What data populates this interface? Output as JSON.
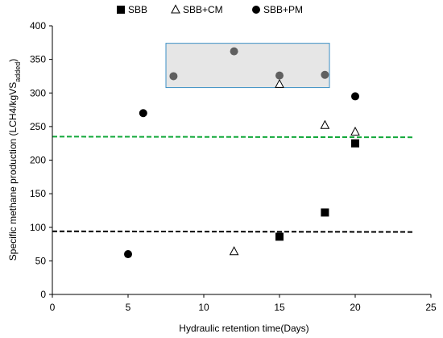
{
  "chart_data": {
    "type": "scatter",
    "xlabel": "Hydraulic retention time(Days)",
    "ylabel_main": "Specific methane production (LCH4/kgVS",
    "ylabel_sub": "added",
    "ylabel_close": ")",
    "xlim": [
      0,
      25
    ],
    "ylim": [
      0,
      400
    ],
    "x_ticks": [
      "0",
      "5",
      "10",
      "15",
      "20",
      "25"
    ],
    "y_ticks": [
      "0",
      "50",
      "100",
      "150",
      "200",
      "250",
      "300",
      "350",
      "400"
    ],
    "legend_position": "top",
    "series": [
      {
        "name": "SBB",
        "marker": "square",
        "color": "#000000",
        "points": [
          [
            15,
            86
          ],
          [
            18,
            122
          ],
          [
            20,
            225
          ]
        ]
      },
      {
        "name": "SBB+CM",
        "marker": "triangle-open",
        "color": "#000000",
        "points": [
          [
            12,
            64
          ],
          [
            15,
            313
          ],
          [
            18,
            252
          ],
          [
            20,
            242
          ]
        ]
      },
      {
        "name": "SBB+PM",
        "marker": "circle",
        "color": "#000000",
        "points": [
          [
            5,
            60
          ],
          [
            6,
            270
          ],
          [
            20,
            295
          ]
        ]
      }
    ],
    "inset_points": {
      "marker": "circle",
      "color": "#606060",
      "points": [
        [
          8,
          325
        ],
        [
          12,
          362
        ],
        [
          15,
          326
        ],
        [
          18,
          327
        ]
      ]
    },
    "inset_box": {
      "x": [
        7.5,
        18.3
      ],
      "y": [
        308,
        374
      ],
      "fill": "#e6e6e6",
      "stroke": "#3b8fc4"
    },
    "reference_lines": [
      {
        "y": [
          235,
          234
        ],
        "x": [
          0,
          23.8
        ],
        "color": "#12a83a",
        "dash": "dashed"
      },
      {
        "y": [
          94,
          93
        ],
        "x": [
          0,
          23.8
        ],
        "color": "#000000",
        "dash": "dashed"
      }
    ],
    "grid": false
  }
}
